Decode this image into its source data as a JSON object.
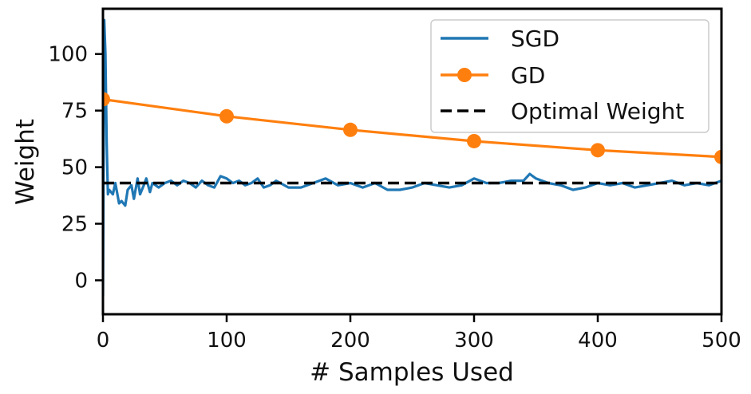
{
  "chart_data": {
    "type": "line",
    "xlabel": "# Samples Used",
    "ylabel": "Weight",
    "xlim": [
      0,
      500
    ],
    "ylim": [
      -15,
      120
    ],
    "xticks": [
      0,
      100,
      200,
      300,
      400,
      500
    ],
    "yticks": [
      0,
      25,
      50,
      75,
      100
    ],
    "grid": false,
    "legend_position": "top-right",
    "series": [
      {
        "name": "SGD",
        "color": "#1f77b4",
        "style": "solid",
        "x": [
          0,
          1,
          2,
          3,
          4,
          5,
          8,
          10,
          13,
          15,
          18,
          20,
          23,
          25,
          28,
          30,
          33,
          35,
          38,
          40,
          45,
          50,
          55,
          60,
          65,
          70,
          75,
          80,
          85,
          90,
          95,
          100,
          105,
          110,
          115,
          120,
          125,
          130,
          135,
          140,
          150,
          160,
          170,
          180,
          190,
          200,
          210,
          220,
          230,
          240,
          250,
          260,
          270,
          280,
          290,
          300,
          310,
          320,
          330,
          340,
          345,
          350,
          360,
          370,
          380,
          390,
          400,
          410,
          420,
          430,
          440,
          450,
          460,
          470,
          480,
          490,
          500
        ],
        "y": [
          -7,
          115,
          100,
          60,
          38,
          40,
          38,
          43,
          34,
          35,
          33,
          40,
          42,
          36,
          45,
          38,
          42,
          45,
          39,
          43,
          41,
          43,
          44,
          42,
          44,
          43,
          41,
          44,
          42,
          41,
          46,
          45,
          43,
          44,
          42,
          43,
          45,
          41,
          42,
          44,
          41,
          41,
          43,
          45,
          42,
          43,
          41,
          43,
          40,
          40,
          41,
          43,
          42,
          41,
          42,
          45,
          43,
          43,
          44,
          44,
          47,
          45,
          43,
          42,
          40,
          41,
          43,
          42,
          43,
          41,
          42,
          43,
          44,
          42,
          43,
          42,
          44
        ]
      },
      {
        "name": "GD",
        "color": "#ff7f0e",
        "style": "solid-markers",
        "x": [
          0,
          100,
          200,
          300,
          400,
          500
        ],
        "y": [
          80,
          72.5,
          66.5,
          61.5,
          57.5,
          54.5
        ]
      },
      {
        "name": "Optimal Weight",
        "color": "#000000",
        "style": "dashed",
        "x": [
          0,
          500
        ],
        "y": [
          43,
          43
        ]
      }
    ]
  }
}
